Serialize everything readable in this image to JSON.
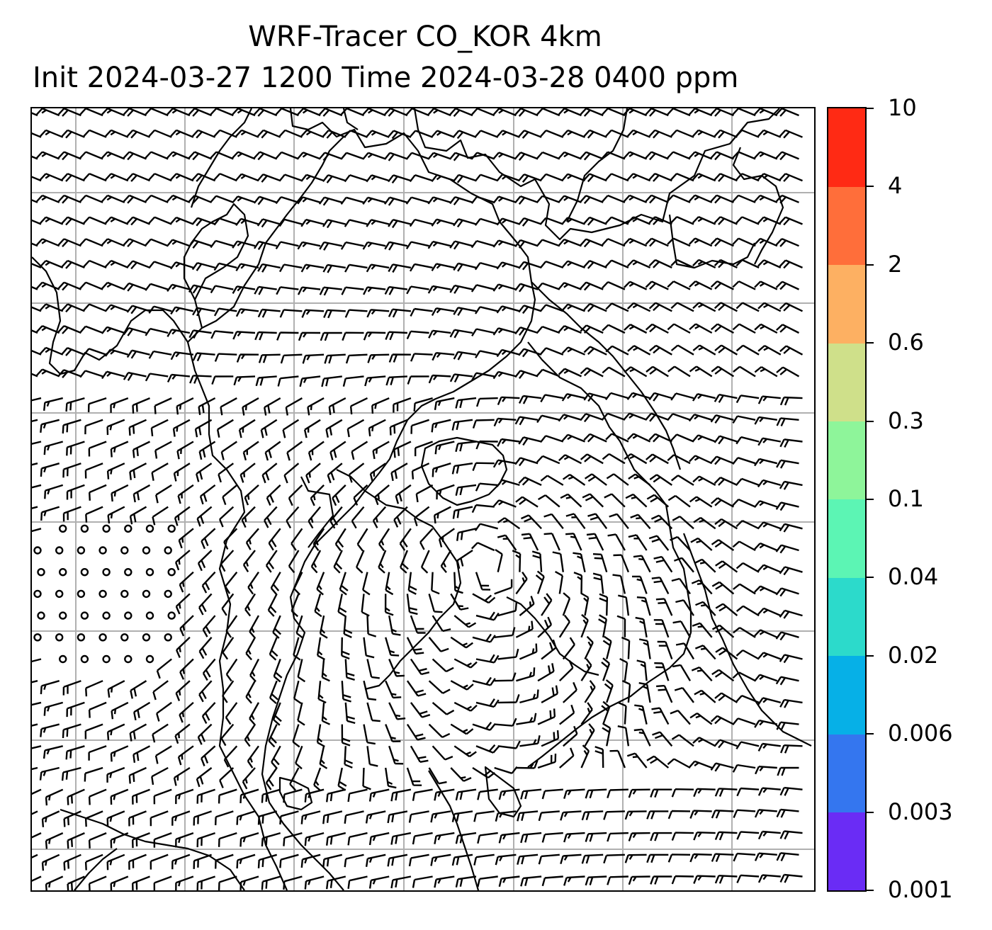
{
  "title": {
    "line1": "WRF-Tracer CO_KOR 4km",
    "line2": "Init 2024-03-27 1200 Time 2024-03-28 0400 ppm"
  },
  "colorbar": {
    "levels": [
      "0.001",
      "0.003",
      "0.006",
      "0.02",
      "0.04",
      "0.1",
      "0.3",
      "0.6",
      "2",
      "4",
      "10"
    ],
    "colors": [
      "#6a2cf5",
      "#3476ef",
      "#06b0e7",
      "#2cdacb",
      "#5cf5b4",
      "#8ef59a",
      "#cfe08a",
      "#fdb062",
      "#ff6e3a",
      "#ff2a14"
    ]
  },
  "map": {
    "gridlines": true,
    "wind_barbs": true,
    "coastlines": true
  }
}
